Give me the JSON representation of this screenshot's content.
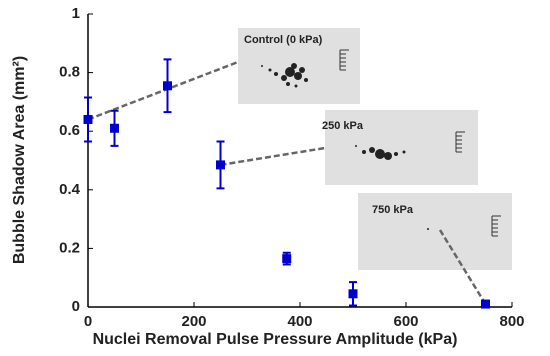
{
  "chart_data": {
    "type": "scatter",
    "xlabel": "Nuclei Removal Pulse Pressure Amplitude (kPa)",
    "ylabel": "Bubble Shadow Area (mm²)",
    "series": [
      {
        "color": "#0000cc",
        "x": [
          0,
          50,
          150,
          250,
          375,
          500,
          750
        ],
        "values": [
          0.64,
          0.61,
          0.755,
          0.485,
          0.165,
          0.045,
          0.01
        ],
        "errors": [
          0.075,
          0.06,
          0.09,
          0.08,
          0.02,
          0.04,
          0.005
        ]
      }
    ],
    "xlim": [
      0,
      800
    ],
    "xticks": [
      0,
      200,
      400,
      600,
      800
    ],
    "ylim": [
      0,
      1
    ],
    "yticks": [
      0,
      0.2,
      0.4,
      0.6,
      0.8,
      1
    ],
    "annotations": [
      "Control (0 kPa)",
      "250 kPa",
      "750 kPa"
    ]
  }
}
